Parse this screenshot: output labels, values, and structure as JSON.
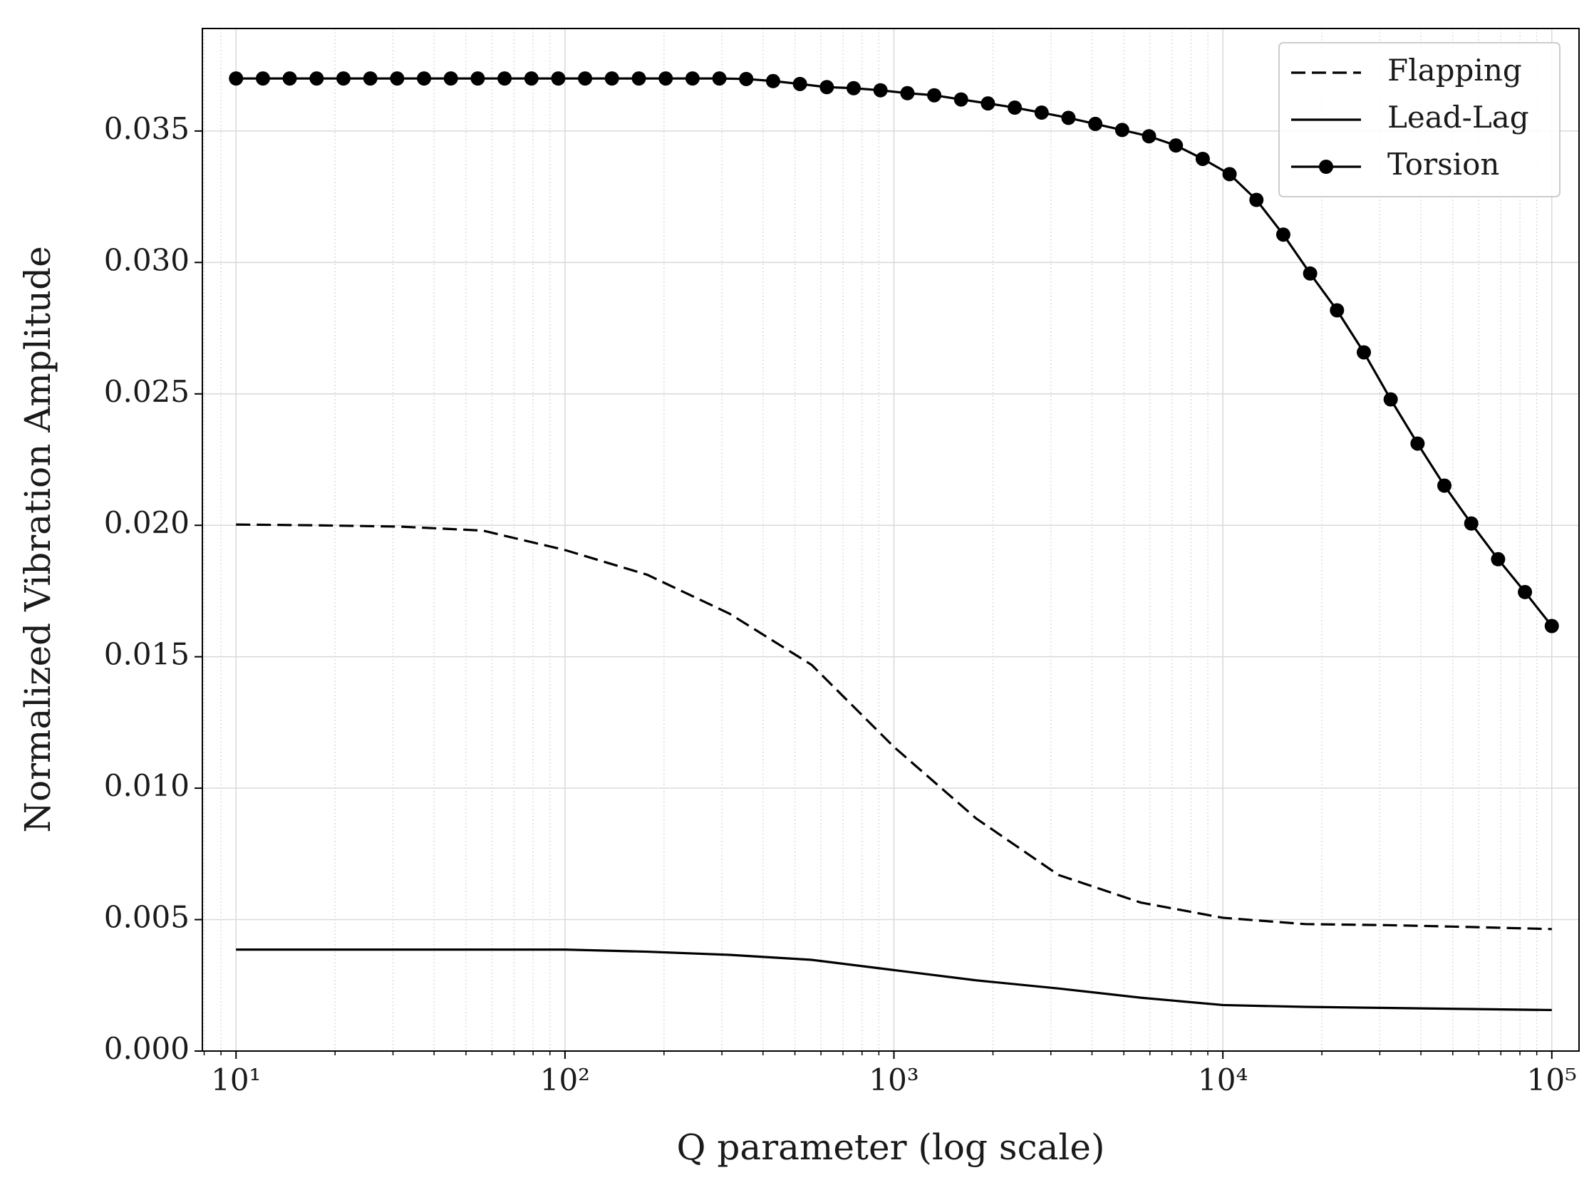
{
  "chart_data": {
    "type": "line",
    "xlabel": "Q parameter (log scale)",
    "ylabel": "Normalized Vibration Amplitude",
    "xscale": "log",
    "xlim": [
      7.9,
      121000
    ],
    "ylim": [
      0,
      0.0389
    ],
    "xticks": [
      {
        "value": 10,
        "label": "10¹"
      },
      {
        "value": 100,
        "label": "10²"
      },
      {
        "value": 1000,
        "label": "10³"
      },
      {
        "value": 10000,
        "label": "10⁴"
      },
      {
        "value": 100000,
        "label": "10⁵"
      }
    ],
    "xminorticks": [
      8,
      9,
      20,
      30,
      40,
      50,
      60,
      70,
      80,
      90,
      200,
      300,
      400,
      500,
      600,
      700,
      800,
      900,
      2000,
      3000,
      4000,
      5000,
      6000,
      7000,
      8000,
      9000,
      20000,
      30000,
      40000,
      50000,
      60000,
      70000,
      80000,
      90000
    ],
    "yticks": [
      {
        "value": 0,
        "label": "0.000"
      },
      {
        "value": 0.005,
        "label": "0.005"
      },
      {
        "value": 0.01,
        "label": "0.010"
      },
      {
        "value": 0.015,
        "label": "0.015"
      },
      {
        "value": 0.02,
        "label": "0.020"
      },
      {
        "value": 0.025,
        "label": "0.025"
      },
      {
        "value": 0.03,
        "label": "0.030"
      },
      {
        "value": 0.035,
        "label": "0.035"
      }
    ],
    "grid": true,
    "legend": "upper right",
    "series": [
      {
        "name": "Flapping",
        "color": "#000000",
        "linestyle": "dashed",
        "x": [
          10,
          17.78,
          31.62,
          56.23,
          100,
          177.8,
          316.2,
          562.3,
          1000,
          1778,
          3162,
          5623,
          10000,
          17783,
          31623,
          56234,
          100000
        ],
        "values": [
          0.02003,
          0.02,
          0.01995,
          0.0198,
          0.01906,
          0.01812,
          0.01664,
          0.01469,
          0.01157,
          0.00885,
          0.0067,
          0.00565,
          0.00507,
          0.00483,
          0.00479,
          0.00472,
          0.00464
        ]
      },
      {
        "name": "Lead-Lag",
        "color": "#000000",
        "linestyle": "solid",
        "x": [
          10,
          17.78,
          31.62,
          56.23,
          100,
          177.8,
          316.2,
          562.3,
          1000,
          1778,
          3162,
          5623,
          10000,
          17783,
          31623,
          56234,
          100000
        ],
        "values": [
          0.00386,
          0.00386,
          0.00386,
          0.00386,
          0.00386,
          0.00378,
          0.00366,
          0.00347,
          0.00308,
          0.00269,
          0.00238,
          0.00203,
          0.00175,
          0.00168,
          0.00164,
          0.0016,
          0.00156
        ]
      },
      {
        "name": "Torsion",
        "color": "#000000",
        "linestyle": "solid",
        "marker": "o",
        "x": [
          10,
          12.07,
          14.56,
          17.58,
          21.21,
          25.6,
          30.89,
          37.28,
          44.98,
          54.29,
          65.51,
          79.06,
          95.41,
          115.1,
          138.9,
          167.7,
          202.4,
          244.2,
          294.7,
          355.6,
          429.2,
          518,
          625.1,
          754.3,
          910.3,
          1099,
          1326,
          1600,
          1931,
          2330,
          2812,
          3393,
          4095,
          4942,
          5964,
          7197,
          8685,
          10481,
          12649,
          15264,
          18421,
          22230,
          26827,
          32375,
          39069,
          47149,
          56899,
          68665,
          82864,
          100000
        ],
        "values": [
          0.037,
          0.037,
          0.037,
          0.037,
          0.037,
          0.037,
          0.037,
          0.037,
          0.037,
          0.037,
          0.037,
          0.037,
          0.037,
          0.037,
          0.037,
          0.037,
          0.037,
          0.037,
          0.037,
          0.03698,
          0.0369,
          0.03679,
          0.03667,
          0.03663,
          0.03655,
          0.03644,
          0.03636,
          0.0362,
          0.03605,
          0.03589,
          0.0357,
          0.0355,
          0.03527,
          0.03504,
          0.0348,
          0.03445,
          0.03394,
          0.03336,
          0.03238,
          0.03106,
          0.02958,
          0.02818,
          0.02658,
          0.02479,
          0.02311,
          0.02151,
          0.02007,
          0.01871,
          0.01746,
          0.01617
        ]
      }
    ]
  }
}
